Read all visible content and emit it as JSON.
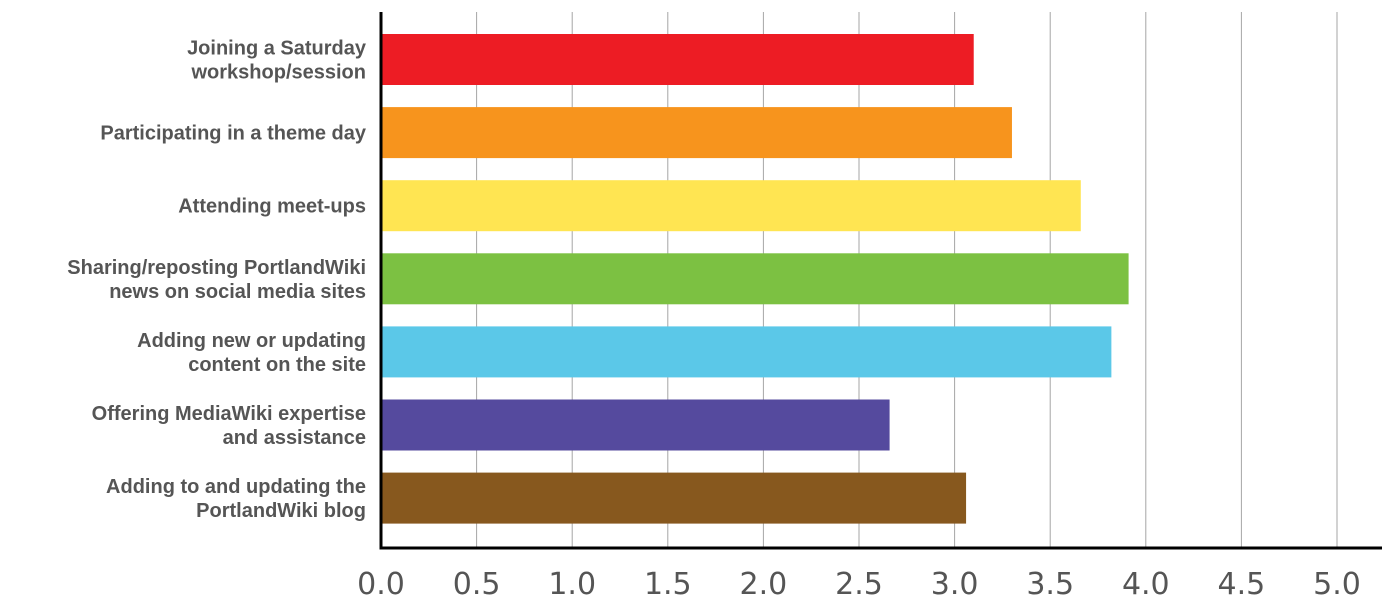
{
  "chart_data": {
    "type": "bar",
    "orientation": "horizontal",
    "categories": [
      [
        "Joining a Saturday",
        "workshop/session"
      ],
      [
        "Participating in a theme day"
      ],
      [
        "Attending meet-ups"
      ],
      [
        "Sharing/reposting PortlandWiki",
        "news on social media sites"
      ],
      [
        "Adding new or updating",
        "content on the site"
      ],
      [
        "Offering MediaWiki expertise",
        "and assistance"
      ],
      [
        "Adding to and updating the",
        "PortlandWiki blog"
      ]
    ],
    "values": [
      3.1,
      3.3,
      3.66,
      3.91,
      3.82,
      2.66,
      3.06
    ],
    "colors": [
      "#ed1c24",
      "#f7941d",
      "#ffe552",
      "#7cc142",
      "#5bc8e8",
      "#554a9e",
      "#87581e"
    ],
    "xlim": [
      0,
      5
    ],
    "xticks": [
      "0.0",
      "0.5",
      "1.0",
      "1.5",
      "2.0",
      "2.5",
      "3.0",
      "3.5",
      "4.0",
      "4.5",
      "5.0"
    ],
    "grid": true,
    "legend": "none",
    "title": "",
    "xlabel": "",
    "ylabel": ""
  }
}
